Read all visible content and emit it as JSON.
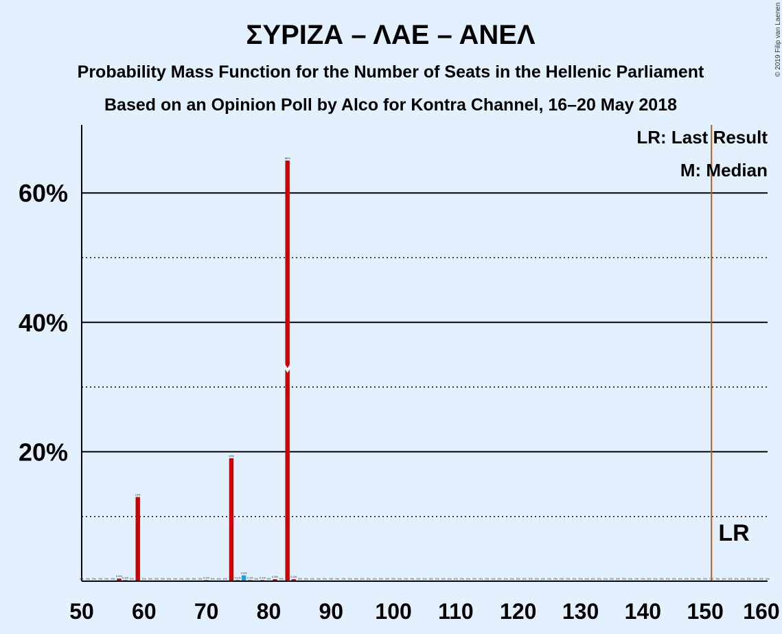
{
  "chart_data": {
    "type": "bar",
    "title": "ΣΥΡΙΖΑ – ΛΑΕ – ΑΝΕΛ",
    "subtitle": "Probability Mass Function for the Number of Seats in the Hellenic Parliament",
    "subtitle2": "Based on an Opinion Poll by Alco for Kontra Channel, 16–20 May 2018",
    "copyright": "© 2019 Filip van Laenen",
    "xlim": [
      50,
      160
    ],
    "ylim": [
      0,
      0.7
    ],
    "xticks": [
      50,
      60,
      70,
      80,
      90,
      100,
      110,
      120,
      130,
      140,
      150,
      160
    ],
    "yticks_major": [
      {
        "value": 0.2,
        "label": "20%"
      },
      {
        "value": 0.4,
        "label": "40%"
      },
      {
        "value": 0.6,
        "label": "60%"
      }
    ],
    "yticks_minor": [
      0.1,
      0.3,
      0.5
    ],
    "bars": [
      {
        "x": 56,
        "value": 0.004,
        "label": "0.4%"
      },
      {
        "x": 57,
        "value": 0.001,
        "label": "0.1%"
      },
      {
        "x": 59,
        "value": 0.13,
        "label": "13%"
      },
      {
        "x": 70,
        "value": 0.001,
        "label": "0.1%"
      },
      {
        "x": 74,
        "value": 0.19,
        "label": "19%"
      },
      {
        "x": 75,
        "value": 0.001,
        "label": "0.1%"
      },
      {
        "x": 76,
        "value": 0.009,
        "label": "0.9%",
        "highlight": true
      },
      {
        "x": 77,
        "value": 0.001,
        "label": "0.1%"
      },
      {
        "x": 79,
        "value": 0.001,
        "label": "0.1%"
      },
      {
        "x": 81,
        "value": 0.003,
        "label": "0.3%"
      },
      {
        "x": 83,
        "value": 0.65,
        "label": "65%",
        "median": true
      },
      {
        "x": 84,
        "value": 0.003,
        "label": "0.3%"
      }
    ],
    "zero_label": "0%",
    "last_result": 151,
    "median": 83,
    "legend": {
      "lr": "LR: Last Result",
      "m": "M: Median",
      "lr_marker": "LR"
    },
    "colors": {
      "background": "#e3f0fd",
      "bar": "#cc0000",
      "highlight": "#1ca0d6",
      "last_result_line": "#b85c1a",
      "grid": "#000000"
    }
  }
}
